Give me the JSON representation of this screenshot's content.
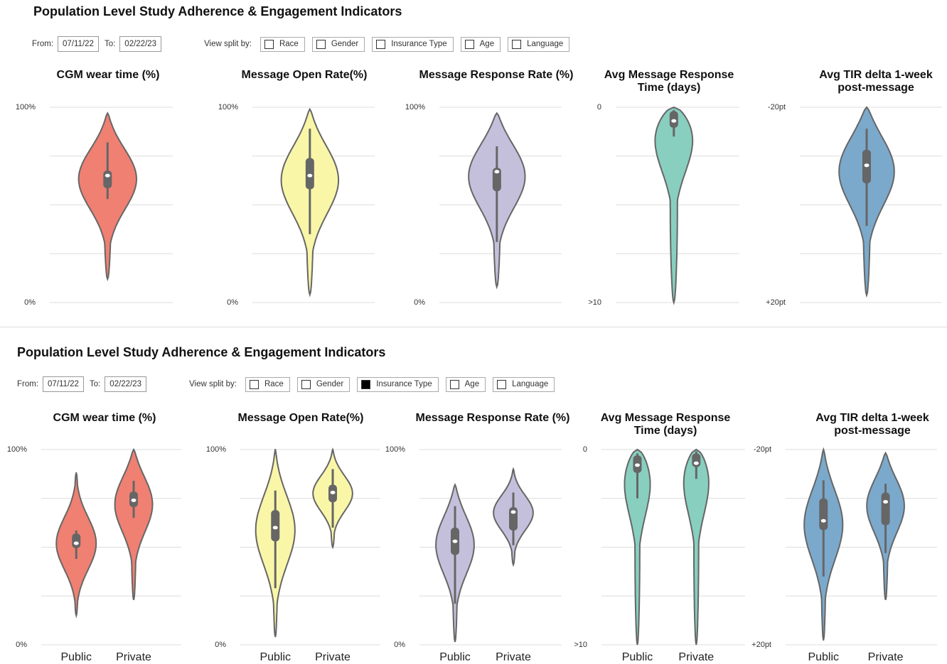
{
  "panels": [
    {
      "title": "Population Level Study Adherence & Engagement Indicators",
      "from_label": "From:",
      "from": "07/11/22",
      "to_label": "To:",
      "to": "02/22/23",
      "split_label": "View split by:",
      "splits": [
        {
          "label": "Race",
          "checked": false
        },
        {
          "label": "Gender",
          "checked": false
        },
        {
          "label": "Insurance Type",
          "checked": false
        },
        {
          "label": "Age",
          "checked": false
        },
        {
          "label": "Language",
          "checked": false
        }
      ],
      "charts": [
        {
          "type": "violin",
          "title": "CGM wear time (%)",
          "color": "#f08072",
          "ylim": [
            0,
            100
          ],
          "yticks": [
            {
              "value": 0,
              "label": "0%"
            },
            {
              "value": 100,
              "label": "100%"
            }
          ],
          "gridlines": [
            0,
            25,
            50,
            75,
            100
          ],
          "violins": [
            {
              "range": [
                12,
                97
              ],
              "whiskers": [
                53,
                82
              ],
              "box": [
                58.5,
                67.6
              ],
              "median": 65
            }
          ]
        },
        {
          "type": "violin",
          "title": "Message Open Rate(%)",
          "color": "#f9f6a8",
          "ylim": [
            0,
            100
          ],
          "yticks": [
            {
              "value": 0,
              "label": "0%"
            },
            {
              "value": 100,
              "label": "100%"
            }
          ],
          "gridlines": [
            0,
            25,
            50,
            75,
            100
          ],
          "violins": [
            {
              "range": [
                4,
                99
              ],
              "whiskers": [
                35,
                89
              ],
              "box": [
                58,
                74
              ],
              "median": 65
            }
          ]
        },
        {
          "type": "violin",
          "title": "Message Response Rate (%)",
          "color": "#c4c0dc",
          "ylim": [
            0,
            100
          ],
          "yticks": [
            {
              "value": 0,
              "label": "0%"
            },
            {
              "value": 100,
              "label": "100%"
            }
          ],
          "gridlines": [
            0,
            25,
            50,
            75,
            100
          ],
          "violins": [
            {
              "range": [
                8,
                97
              ],
              "whiskers": [
                31,
                80
              ],
              "box": [
                57,
                69
              ],
              "median": 67
            }
          ]
        },
        {
          "type": "violin",
          "title": "Avg Message Response Time (days)",
          "color": "#88cfc0",
          "ylim": [
            10,
            0
          ],
          "yticks": [
            {
              "value": 10,
              "label": ">10"
            },
            0
          ],
          "gridlines": [
            0,
            2.5,
            5,
            7.5,
            10
          ],
          "violins": [
            {
              "range": [
                0,
                10
              ],
              "whiskers": [
                0.15,
                1.5
              ],
              "box": [
                0.2,
                1.05
              ],
              "median": 0.7
            }
          ]
        },
        {
          "type": "violin",
          "title": "Avg TIR delta 1-week post-message",
          "color": "#7ba9cc",
          "ylim": [
            20,
            -20
          ],
          "yticks": [
            {
              "value": 20,
              "label": "+20pt"
            },
            {
              "value": -20,
              "label": "-20pt"
            }
          ],
          "gridlines": [
            -20,
            -10,
            0,
            10,
            20
          ],
          "violins": [
            {
              "range": [
                -20,
                18.5
              ],
              "whiskers": [
                -15.6,
                4.3
              ],
              "box": [
                -11.3,
                -4.4
              ],
              "median": -8.1
            }
          ]
        }
      ]
    },
    {
      "title": "Population Level Study Adherence & Engagement Indicators",
      "from_label": "From:",
      "from": "07/11/22",
      "to_label": "To:",
      "to": "02/22/23",
      "split_label": "View split by:",
      "splits": [
        {
          "label": "Race",
          "checked": false
        },
        {
          "label": "Gender",
          "checked": false
        },
        {
          "label": "Insurance Type",
          "checked": true
        },
        {
          "label": "Age",
          "checked": false
        },
        {
          "label": "Language",
          "checked": false
        }
      ],
      "charts": [
        {
          "type": "violin",
          "title": "CGM wear time (%)",
          "color": "#f08072",
          "ylim": [
            0,
            100
          ],
          "yticks": [
            {
              "value": 0,
              "label": "0%"
            },
            {
              "value": 100,
              "label": "100%"
            }
          ],
          "gridlines": [
            0,
            25,
            50,
            75,
            100
          ],
          "violins": [
            {
              "category": "Public",
              "range": [
                15,
                88
              ],
              "whiskers": [
                44,
                58.5
              ],
              "box": [
                49.5,
                57
              ],
              "median": 52
            },
            {
              "category": "Private",
              "range": [
                23,
                100
              ],
              "whiskers": [
                65,
                84
              ],
              "box": [
                70.5,
                78.5
              ],
              "median": 74
            }
          ]
        },
        {
          "type": "violin",
          "title": "Message Open Rate(%)",
          "color": "#f9f6a8",
          "ylim": [
            0,
            100
          ],
          "yticks": [
            {
              "value": 0,
              "label": "0%"
            },
            {
              "value": 100,
              "label": "100%"
            }
          ],
          "gridlines": [
            0,
            25,
            50,
            75,
            100
          ],
          "violins": [
            {
              "category": "Public",
              "range": [
                4,
                100
              ],
              "whiskers": [
                29,
                79
              ],
              "box": [
                53,
                69
              ],
              "median": 60
            },
            {
              "category": "Private",
              "range": [
                50,
                100
              ],
              "whiskers": [
                60,
                90
              ],
              "box": [
                73,
                82
              ],
              "median": 78
            }
          ]
        },
        {
          "type": "violin",
          "title": "Message Response Rate (%)",
          "color": "#c4c0dc",
          "ylim": [
            0,
            100
          ],
          "yticks": [
            {
              "value": 0,
              "label": "0%"
            },
            {
              "value": 100,
              "label": "100%"
            }
          ],
          "gridlines": [
            0,
            25,
            50,
            75,
            100
          ],
          "violins": [
            {
              "category": "Public",
              "range": [
                1.5,
                82
              ],
              "whiskers": [
                21,
                71
              ],
              "box": [
                46,
                60
              ],
              "median": 53
            },
            {
              "category": "Private",
              "range": [
                41,
                90
              ],
              "whiskers": [
                51,
                78
              ],
              "box": [
                58.5,
                70.5
              ],
              "median": 68
            }
          ]
        },
        {
          "type": "violin",
          "title": "Avg Message Response Time (days)",
          "color": "#88cfc0",
          "ylim": [
            10,
            0
          ],
          "yticks": [
            {
              "value": 10,
              "label": ">10"
            },
            0
          ],
          "gridlines": [
            0,
            2.5,
            5,
            7.5,
            10
          ],
          "violins": [
            {
              "category": "Public",
              "range": [
                0,
                10
              ],
              "whiskers": [
                0.2,
                2.5
              ],
              "box": [
                0.3,
                1.2
              ],
              "median": 0.8
            },
            {
              "category": "Private",
              "range": [
                0,
                10
              ],
              "whiskers": [
                0.1,
                1.5
              ],
              "box": [
                0.2,
                0.9
              ],
              "median": 0.7
            }
          ]
        },
        {
          "type": "violin",
          "title": "Avg TIR delta 1-week post-message",
          "color": "#7ba9cc",
          "ylim": [
            20,
            -20
          ],
          "yticks": [
            {
              "value": 20,
              "label": "+20pt"
            },
            {
              "value": -20,
              "label": "-20pt"
            }
          ],
          "gridlines": [
            -20,
            -10,
            0,
            10,
            20
          ],
          "violins": [
            {
              "category": "Public",
              "range": [
                -20,
                19
              ],
              "whiskers": [
                -13.7,
                6
              ],
              "box": [
                -10,
                -3.5
              ],
              "median": -5.4
            },
            {
              "category": "Private",
              "range": [
                -19.3,
                10.8
              ],
              "whiskers": [
                -13,
                1.2
              ],
              "box": [
                -11.2,
                -4.5
              ],
              "median": -9.3
            }
          ]
        }
      ]
    }
  ]
}
